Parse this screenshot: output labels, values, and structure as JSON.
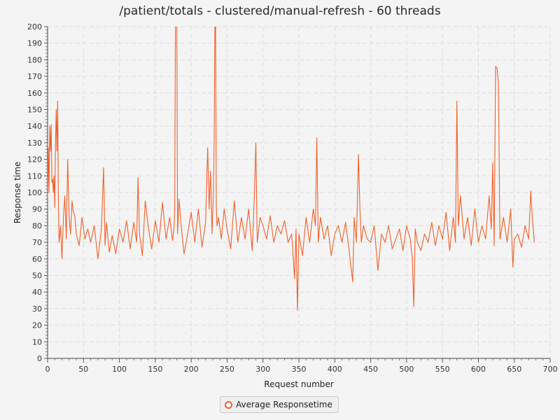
{
  "chart_data": {
    "type": "line",
    "title": "/patient/totals - clustered/manual-refresh - 60 threads",
    "xlabel": "Request number",
    "ylabel": "Response time",
    "xlim": [
      0,
      700
    ],
    "ylim": [
      0,
      200
    ],
    "x_ticks": [
      0,
      50,
      100,
      150,
      200,
      250,
      300,
      350,
      400,
      450,
      500,
      550,
      600,
      650,
      700
    ],
    "y_ticks": [
      0,
      10,
      20,
      30,
      40,
      50,
      60,
      70,
      80,
      90,
      100,
      110,
      120,
      130,
      140,
      150,
      160,
      170,
      180,
      190,
      200
    ],
    "grid": true,
    "legend_position": "bottom-center",
    "colors": {
      "series": "#f0612a",
      "grid": "#dddddd",
      "background": "#f4f4f4"
    },
    "series": [
      {
        "name": "Average Responsetime",
        "x": [
          0,
          1,
          2,
          3,
          4,
          5,
          6,
          7,
          8,
          9,
          10,
          11,
          12,
          13,
          14,
          15,
          16,
          18,
          20,
          22,
          24,
          26,
          28,
          30,
          32,
          34,
          36,
          38,
          40,
          44,
          48,
          52,
          56,
          60,
          65,
          70,
          75,
          78,
          80,
          82,
          86,
          90,
          95,
          100,
          105,
          110,
          115,
          120,
          124,
          126,
          128,
          132,
          136,
          140,
          145,
          150,
          155,
          160,
          165,
          170,
          174,
          176,
          177,
          178,
          179,
          180,
          181,
          183,
          186,
          190,
          195,
          200,
          205,
          210,
          215,
          220,
          223,
          225,
          227,
          229,
          231,
          232,
          233,
          234,
          235,
          236,
          238,
          242,
          246,
          250,
          255,
          260,
          265,
          270,
          275,
          280,
          285,
          288,
          290,
          292,
          296,
          300,
          305,
          310,
          315,
          320,
          325,
          330,
          335,
          340,
          344,
          346,
          348,
          350,
          355,
          360,
          365,
          370,
          373,
          375,
          377,
          380,
          385,
          390,
          395,
          400,
          405,
          410,
          415,
          420,
          425,
          427,
          430,
          433,
          435,
          437,
          440,
          445,
          450,
          455,
          460,
          465,
          470,
          475,
          480,
          485,
          490,
          495,
          500,
          505,
          508,
          510,
          512,
          515,
          520,
          525,
          530,
          535,
          540,
          545,
          550,
          555,
          560,
          565,
          568,
          570,
          572,
          575,
          580,
          585,
          590,
          595,
          600,
          605,
          610,
          615,
          618,
          620,
          622,
          624,
          626,
          628,
          630,
          635,
          640,
          645,
          648,
          650,
          655,
          660,
          665,
          670,
          673,
          675,
          678
        ],
        "values": [
          97,
          127,
          100,
          140,
          125,
          141,
          106,
          108,
          100,
          110,
          91,
          130,
          150,
          125,
          155,
          95,
          70,
          80,
          60,
          85,
          98,
          72,
          120,
          85,
          75,
          95,
          88,
          86,
          75,
          68,
          85,
          72,
          78,
          70,
          80,
          60,
          78,
          115,
          68,
          82,
          64,
          74,
          63,
          78,
          70,
          83,
          66,
          82,
          70,
          109,
          75,
          62,
          95,
          80,
          66,
          83,
          70,
          94,
          72,
          85,
          71,
          78,
          88,
          200,
          201,
          200,
          75,
          96,
          80,
          63,
          75,
          88,
          70,
          90,
          67,
          82,
          127,
          90,
          113,
          75,
          100,
          130,
          201,
          200,
          92,
          80,
          85,
          72,
          90,
          78,
          66,
          95,
          70,
          85,
          72,
          90,
          65,
          98,
          130,
          70,
          85,
          80,
          72,
          86,
          70,
          80,
          75,
          83,
          70,
          75,
          48,
          78,
          29,
          75,
          62,
          85,
          70,
          90,
          80,
          133,
          70,
          85,
          72,
          80,
          62,
          75,
          80,
          70,
          82,
          65,
          46,
          85,
          70,
          123,
          90,
          70,
          80,
          72,
          70,
          80,
          53,
          75,
          70,
          80,
          66,
          72,
          78,
          65,
          80,
          72,
          60,
          31,
          78,
          70,
          65,
          75,
          70,
          82,
          68,
          80,
          72,
          88,
          65,
          85,
          70,
          155,
          80,
          98,
          72,
          85,
          68,
          90,
          70,
          80,
          72,
          98,
          78,
          118,
          68,
          176,
          175,
          165,
          72,
          85,
          70,
          90,
          55,
          72,
          75,
          67,
          80,
          72,
          101,
          85,
          70
        ]
      }
    ]
  }
}
